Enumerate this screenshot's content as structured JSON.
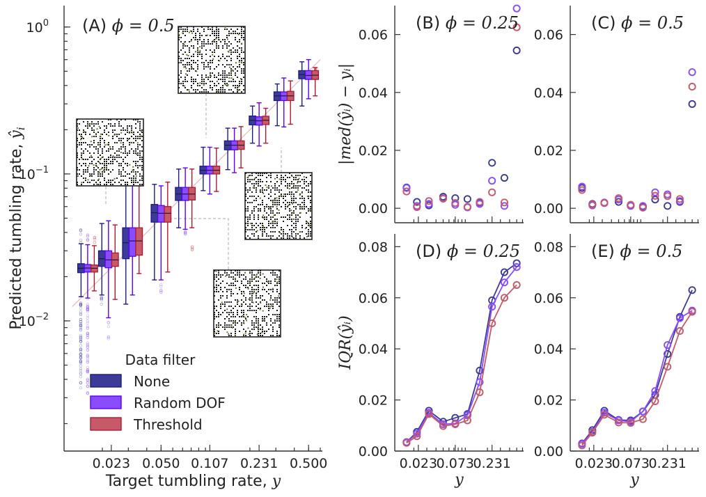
{
  "colors": {
    "None": "#3c3c96",
    "Random DOF": "#8a4cff",
    "Threshold": "#c65a68",
    "whisker_none": "#1a1a8c",
    "whisker_rdof": "#5a00ff",
    "whisker_thr": "#b01830"
  },
  "chart_data": [
    {
      "id": "A",
      "type": "box",
      "panel_label": "(A)",
      "panel_math": "ϕ = 0.5",
      "xlabel_text": "Target tumbling rate, ",
      "xlabel_math": "y",
      "ylabel_text": "Predicted tumbling rate, ",
      "ylabel_math": "ŷ",
      "ylabel_sub": "i",
      "xscale": "log",
      "yscale": "log",
      "xlim": [
        0.011,
        0.62
      ],
      "ylim": [
        0.0013,
        1.4
      ],
      "x_tick_labels": [
        "0.023",
        "0.050",
        "0.107",
        "0.231",
        "0.500"
      ],
      "x_ticks": [
        0.023,
        0.05,
        0.107,
        0.231,
        0.5
      ],
      "y_tick_labels": [
        "10",
        "10",
        "10"
      ],
      "y_tick_exponents": [
        "0",
        "−1",
        "−2"
      ],
      "y_ticks": [
        1,
        0.1,
        0.01
      ],
      "legend_title": "Data filter",
      "legend_position": "lower-left",
      "series": [
        {
          "name": "None",
          "boxes": [
            {
              "x": 0.0159,
              "whislo": 0.0146,
              "q1": 0.0213,
              "med": 0.0228,
              "q3": 0.0245,
              "whishi": 0.0335
            },
            {
              "x": 0.022,
              "whislo": 0.015,
              "q1": 0.0235,
              "med": 0.0265,
              "q3": 0.03,
              "whishi": 0.046
            },
            {
              "x": 0.032,
              "whislo": 0.013,
              "q1": 0.0265,
              "med": 0.034,
              "q3": 0.043,
              "whishi": 0.09
            },
            {
              "x": 0.05,
              "whislo": 0.019,
              "q1": 0.047,
              "med": 0.0545,
              "q3": 0.062,
              "whishi": 0.085
            },
            {
              "x": 0.073,
              "whislo": 0.043,
              "q1": 0.066,
              "med": 0.073,
              "q3": 0.081,
              "whishi": 0.108
            },
            {
              "x": 0.107,
              "whislo": 0.077,
              "q1": 0.1,
              "med": 0.106,
              "q3": 0.113,
              "whishi": 0.152
            },
            {
              "x": 0.157,
              "whislo": 0.107,
              "q1": 0.146,
              "med": 0.157,
              "q3": 0.168,
              "whishi": 0.205
            },
            {
              "x": 0.231,
              "whislo": 0.162,
              "q1": 0.216,
              "med": 0.232,
              "q3": 0.248,
              "whishi": 0.29
            },
            {
              "x": 0.34,
              "whislo": 0.213,
              "q1": 0.316,
              "med": 0.34,
              "q3": 0.362,
              "whishi": 0.41
            },
            {
              "x": 0.5,
              "whislo": 0.29,
              "q1": 0.445,
              "med": 0.475,
              "q3": 0.505,
              "whishi": 0.58
            }
          ]
        },
        {
          "name": "Random DOF",
          "boxes": [
            {
              "x": 0.0159,
              "whislo": 0.0143,
              "q1": 0.0215,
              "med": 0.0229,
              "q3": 0.0242,
              "whishi": 0.033
            },
            {
              "x": 0.022,
              "whislo": 0.0105,
              "q1": 0.023,
              "med": 0.026,
              "q3": 0.03,
              "whishi": 0.048
            },
            {
              "x": 0.032,
              "whislo": 0.015,
              "q1": 0.0275,
              "med": 0.035,
              "q3": 0.043,
              "whishi": 0.09
            },
            {
              "x": 0.05,
              "whislo": 0.019,
              "q1": 0.047,
              "med": 0.054,
              "q3": 0.061,
              "whishi": 0.083
            },
            {
              "x": 0.073,
              "whislo": 0.042,
              "q1": 0.066,
              "med": 0.073,
              "q3": 0.081,
              "whishi": 0.11
            },
            {
              "x": 0.107,
              "whislo": 0.073,
              "q1": 0.1,
              "med": 0.106,
              "q3": 0.113,
              "whishi": 0.152
            },
            {
              "x": 0.157,
              "whislo": 0.102,
              "q1": 0.146,
              "med": 0.157,
              "q3": 0.168,
              "whishi": 0.205
            },
            {
              "x": 0.231,
              "whislo": 0.155,
              "q1": 0.215,
              "med": 0.23,
              "q3": 0.245,
              "whishi": 0.305
            },
            {
              "x": 0.34,
              "whislo": 0.209,
              "q1": 0.316,
              "med": 0.34,
              "q3": 0.362,
              "whishi": 0.45
            },
            {
              "x": 0.5,
              "whislo": 0.325,
              "q1": 0.44,
              "med": 0.468,
              "q3": 0.505,
              "whishi": 0.6
            }
          ]
        },
        {
          "name": "Threshold",
          "boxes": [
            {
              "x": 0.0159,
              "whislo": 0.016,
              "q1": 0.0215,
              "med": 0.0228,
              "q3": 0.024,
              "whishi": 0.0325
            },
            {
              "x": 0.022,
              "whislo": 0.014,
              "q1": 0.0235,
              "med": 0.026,
              "q3": 0.029,
              "whishi": 0.045
            },
            {
              "x": 0.032,
              "whislo": 0.021,
              "q1": 0.028,
              "med": 0.035,
              "q3": 0.043,
              "whishi": 0.083
            },
            {
              "x": 0.05,
              "whislo": 0.0215,
              "q1": 0.047,
              "med": 0.054,
              "q3": 0.06,
              "whishi": 0.088
            },
            {
              "x": 0.073,
              "whislo": 0.043,
              "q1": 0.0665,
              "med": 0.073,
              "q3": 0.081,
              "whishi": 0.108
            },
            {
              "x": 0.107,
              "whislo": 0.076,
              "q1": 0.1,
              "med": 0.106,
              "q3": 0.113,
              "whishi": 0.15
            },
            {
              "x": 0.157,
              "whislo": 0.11,
              "q1": 0.147,
              "med": 0.157,
              "q3": 0.168,
              "whishi": 0.21
            },
            {
              "x": 0.231,
              "whislo": 0.162,
              "q1": 0.217,
              "med": 0.232,
              "q3": 0.247,
              "whishi": 0.28
            },
            {
              "x": 0.34,
              "whislo": 0.218,
              "q1": 0.316,
              "med": 0.34,
              "q3": 0.365,
              "whishi": 0.43
            },
            {
              "x": 0.5,
              "whislo": 0.34,
              "q1": 0.44,
              "med": 0.47,
              "q3": 0.505,
              "whishi": 0.53
            }
          ]
        }
      ]
    },
    {
      "id": "B",
      "type": "scatter",
      "panel_label": "(B)",
      "panel_math": "ϕ = 0.25",
      "ylabel_math": "|med(ŷᵢ) − yᵢ|",
      "xscale": "log",
      "xlim": [
        0.011,
        0.62
      ],
      "ylim": [
        -0.005,
        0.07
      ],
      "y_ticks": [
        0,
        0.02,
        0.04,
        0.06
      ],
      "y_tick_labels": [
        "0.00",
        "0.02",
        "0.04",
        "0.06"
      ],
      "x": [
        0.0159,
        0.022,
        0.032,
        0.05,
        0.073,
        0.107,
        0.157,
        0.231,
        0.34,
        0.5
      ],
      "series": [
        {
          "name": "None",
          "values": [
            0.0072,
            0.0022,
            0.001,
            0.004,
            0.0035,
            0.0032,
            0.002,
            0.0157,
            0.0105,
            0.0545
          ]
        },
        {
          "name": "Random DOF",
          "values": [
            0.007,
            0.0008,
            0.0015,
            0.0035,
            0.0012,
            0.0003,
            0.0015,
            0.0095,
            0.0008,
            0.069
          ]
        },
        {
          "name": "Threshold",
          "values": [
            0.0058,
            0.0004,
            0.0025,
            0.0033,
            0.0018,
            0.0005,
            0.0022,
            0.0055,
            0.002,
            0.0625
          ]
        }
      ]
    },
    {
      "id": "C",
      "type": "scatter",
      "panel_label": "(C)",
      "panel_math": "ϕ = 0.5",
      "xscale": "log",
      "xlim": [
        0.011,
        0.62
      ],
      "ylim": [
        -0.005,
        0.07
      ],
      "y_ticks": [
        0,
        0.02,
        0.04,
        0.06
      ],
      "y_tick_labels": [
        "0.00",
        "0.02",
        "0.04",
        "0.06"
      ],
      "x": [
        0.0159,
        0.022,
        0.032,
        0.05,
        0.073,
        0.107,
        0.157,
        0.231,
        0.34,
        0.5
      ],
      "series": [
        {
          "name": "None",
          "values": [
            0.007,
            0.0015,
            0.0018,
            0.0022,
            0.001,
            0.0005,
            0.003,
            0.0008,
            0.0022,
            0.036
          ]
        },
        {
          "name": "Random DOF",
          "values": [
            0.0075,
            0.001,
            0.002,
            0.003,
            0.0008,
            0.0008,
            0.0055,
            0.0048,
            0.0025,
            0.047
          ]
        },
        {
          "name": "Threshold",
          "values": [
            0.0063,
            0.0013,
            0.0018,
            0.0035,
            0.0012,
            0.0002,
            0.0043,
            0.0042,
            0.0032,
            0.042
          ]
        }
      ]
    },
    {
      "id": "D",
      "type": "line",
      "panel_label": "(D)",
      "panel_math": "ϕ = 0.25",
      "xlabel_math": "y",
      "ylabel_math": "IQR(ŷᵢ)",
      "xscale": "log",
      "xlim": [
        0.011,
        0.62
      ],
      "ylim": [
        0,
        0.085
      ],
      "x_tick_labels": [
        "0.023",
        "0.073",
        "0.231"
      ],
      "x_ticks": [
        0.023,
        0.073,
        0.231
      ],
      "y_ticks": [
        0,
        0.02,
        0.04,
        0.06,
        0.08
      ],
      "y_tick_labels": [
        "0.00",
        "0.02",
        "0.04",
        "0.06",
        "0.08"
      ],
      "x": [
        0.0159,
        0.022,
        0.032,
        0.05,
        0.073,
        0.107,
        0.157,
        0.231,
        0.34,
        0.5
      ],
      "series": [
        {
          "name": "None",
          "values": [
            0.0035,
            0.0075,
            0.0158,
            0.0115,
            0.013,
            0.0145,
            0.0315,
            0.059,
            0.07,
            0.0735
          ]
        },
        {
          "name": "Random DOF",
          "values": [
            0.0035,
            0.0068,
            0.015,
            0.0105,
            0.0108,
            0.014,
            0.027,
            0.0565,
            0.066,
            0.072
          ]
        },
        {
          "name": "Threshold",
          "values": [
            0.0032,
            0.0058,
            0.0145,
            0.0098,
            0.0105,
            0.012,
            0.023,
            0.05,
            0.06,
            0.065
          ]
        }
      ]
    },
    {
      "id": "E",
      "type": "line",
      "panel_label": "(E)",
      "panel_math": "ϕ = 0.5",
      "xlabel_math": "y",
      "xscale": "log",
      "xlim": [
        0.011,
        0.62
      ],
      "ylim": [
        0,
        0.085
      ],
      "x_tick_labels": [
        "0.023",
        "0.073",
        "0.231"
      ],
      "x_ticks": [
        0.023,
        0.073,
        0.231
      ],
      "y_ticks": [
        0,
        0.02,
        0.04,
        0.06,
        0.08
      ],
      "y_tick_labels": [
        "0.00",
        "0.02",
        "0.04",
        "0.06",
        "0.08"
      ],
      "x": [
        0.0159,
        0.022,
        0.032,
        0.05,
        0.073,
        0.107,
        0.157,
        0.231,
        0.34,
        0.5
      ],
      "series": [
        {
          "name": "None",
          "values": [
            0.003,
            0.0082,
            0.0158,
            0.0122,
            0.012,
            0.0155,
            0.022,
            0.038,
            0.0525,
            0.063
          ]
        },
        {
          "name": "Random DOF",
          "values": [
            0.0028,
            0.0075,
            0.015,
            0.012,
            0.0115,
            0.0155,
            0.0235,
            0.0415,
            0.052,
            0.055
          ]
        },
        {
          "name": "Threshold",
          "values": [
            0.0022,
            0.0072,
            0.0142,
            0.0112,
            0.011,
            0.0125,
            0.0195,
            0.033,
            0.047,
            0.0545
          ]
        }
      ]
    }
  ]
}
